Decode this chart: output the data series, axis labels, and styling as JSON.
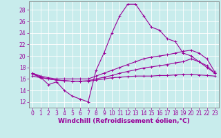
{
  "background_color": "#c8ecec",
  "grid_color": "#ffffff",
  "line_color": "#990099",
  "marker": "+",
  "xlabel": "Windchill (Refroidissement éolien,°C)",
  "xlabel_fontsize": 6.5,
  "tick_fontsize": 5.5,
  "xlim": [
    -0.5,
    23.5
  ],
  "ylim": [
    11,
    29.5
  ],
  "yticks": [
    12,
    14,
    16,
    18,
    20,
    22,
    24,
    26,
    28
  ],
  "xticks": [
    0,
    1,
    2,
    3,
    4,
    5,
    6,
    7,
    8,
    9,
    10,
    11,
    12,
    13,
    14,
    15,
    16,
    17,
    18,
    19,
    20,
    21,
    22,
    23
  ],
  "series": [
    {
      "x": [
        0,
        1,
        2,
        3,
        4,
        5,
        6,
        7,
        8,
        9,
        10,
        11,
        12,
        13,
        14,
        15,
        16,
        17,
        18,
        19,
        20,
        21,
        22,
        23
      ],
      "y": [
        17,
        16.3,
        15,
        15.5,
        14,
        13,
        12.5,
        12,
        17.5,
        20.5,
        24,
        27,
        29,
        29,
        27,
        25,
        24.5,
        23,
        22.5,
        20.5,
        20,
        19,
        18,
        17
      ]
    },
    {
      "x": [
        0,
        1,
        2,
        3,
        4,
        5,
        6,
        7,
        8,
        9,
        10,
        11,
        12,
        13,
        14,
        15,
        16,
        17,
        18,
        19,
        20,
        21,
        22,
        23
      ],
      "y": [
        17,
        16.5,
        16.2,
        16,
        16,
        16,
        16,
        16,
        16.5,
        17,
        17.5,
        18,
        18.5,
        19,
        19.5,
        19.8,
        20,
        20.2,
        20.5,
        20.8,
        21,
        20.5,
        19.5,
        17.2
      ]
    },
    {
      "x": [
        0,
        1,
        2,
        3,
        4,
        5,
        6,
        7,
        8,
        9,
        10,
        11,
        12,
        13,
        14,
        15,
        16,
        17,
        18,
        19,
        20,
        21,
        22,
        23
      ],
      "y": [
        16.8,
        16.3,
        16,
        15.8,
        15.7,
        15.6,
        15.6,
        15.7,
        16,
        16.3,
        16.6,
        17,
        17.3,
        17.6,
        17.9,
        18.1,
        18.3,
        18.5,
        18.8,
        19,
        19.5,
        19,
        18.3,
        17
      ]
    },
    {
      "x": [
        0,
        1,
        2,
        3,
        4,
        5,
        6,
        7,
        8,
        9,
        10,
        11,
        12,
        13,
        14,
        15,
        16,
        17,
        18,
        19,
        20,
        21,
        22,
        23
      ],
      "y": [
        16.5,
        16.2,
        16,
        15.8,
        15.7,
        15.6,
        15.6,
        15.6,
        15.8,
        16,
        16.2,
        16.3,
        16.4,
        16.5,
        16.5,
        16.5,
        16.6,
        16.6,
        16.7,
        16.8,
        16.8,
        16.7,
        16.6,
        16.5
      ]
    }
  ]
}
